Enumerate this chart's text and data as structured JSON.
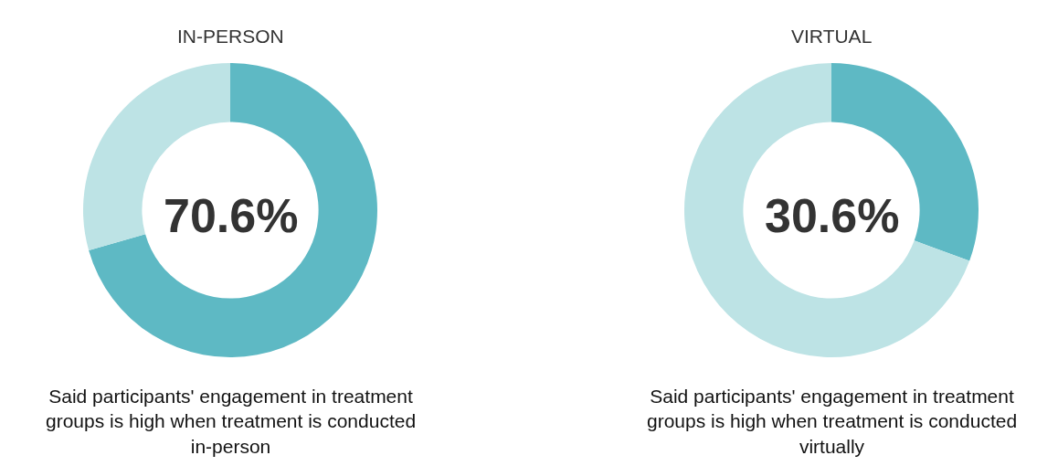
{
  "chart_data": [
    {
      "type": "donut",
      "title": "IN-PERSON",
      "categories": [
        null,
        null
      ],
      "values": [
        70.6,
        29.4
      ],
      "colors": [
        "#5eb9c4",
        "#bde3e5"
      ],
      "annotations": [
        "70.6%",
        "Said participants' engagement in treatment groups is high when treatment is conducted in-person"
      ]
    },
    {
      "type": "donut",
      "title": "VIRTUAL",
      "categories": [
        null,
        null
      ],
      "values": [
        30.6,
        69.4
      ],
      "colors": [
        "#5eb9c4",
        "#bde3e5"
      ],
      "annotations": [
        "30.6%",
        "Said participants' engagement in treatment groups is high when treatment is conducted virtually"
      ]
    }
  ]
}
